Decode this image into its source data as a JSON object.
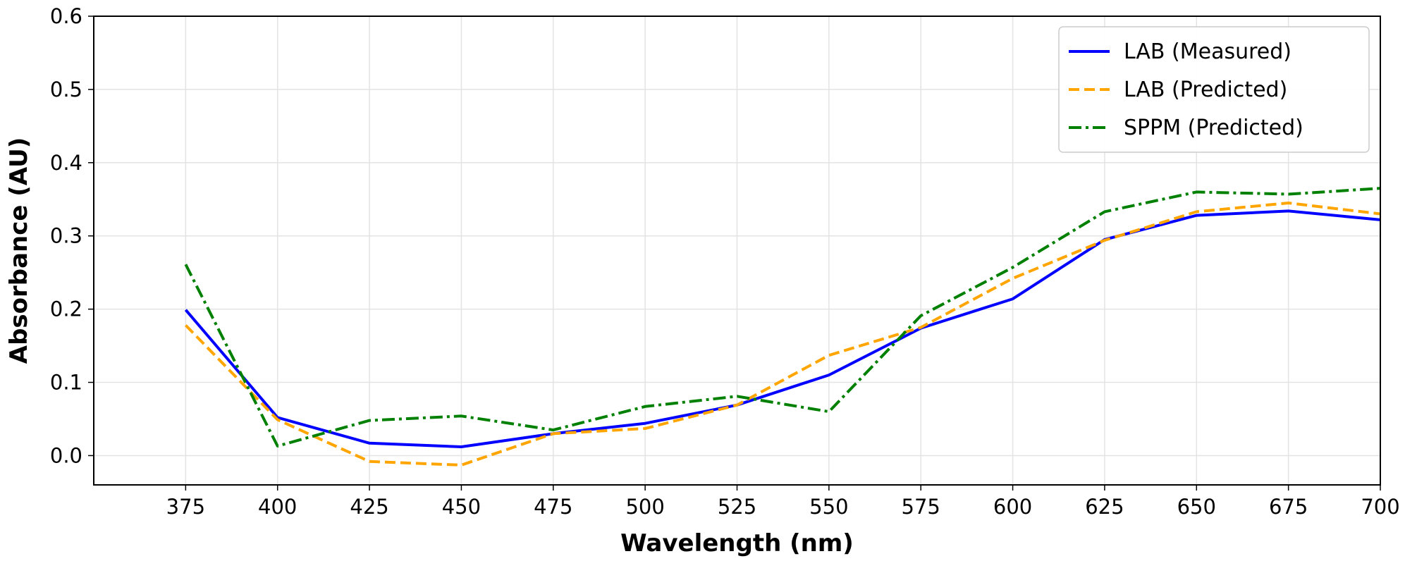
{
  "chart_data": {
    "type": "line",
    "title": "",
    "xlabel": "Wavelength (nm)",
    "ylabel": "Absorbance (AU)",
    "xlim": [
      350,
      700
    ],
    "ylim": [
      -0.04,
      0.6
    ],
    "x_ticks": [
      375,
      400,
      425,
      450,
      475,
      500,
      525,
      550,
      575,
      600,
      625,
      650,
      675,
      700
    ],
    "y_ticks": [
      0.0,
      0.1,
      0.2,
      0.3,
      0.4,
      0.5,
      0.6
    ],
    "x_tick_labels": [
      "375",
      "400",
      "425",
      "450",
      "475",
      "500",
      "525",
      "550",
      "575",
      "600",
      "625",
      "650",
      "675",
      "700"
    ],
    "y_tick_labels": [
      "0.0",
      "0.1",
      "0.2",
      "0.3",
      "0.4",
      "0.5",
      "0.6"
    ],
    "grid": true,
    "legend_position": "top-right",
    "x": [
      375,
      400,
      425,
      450,
      475,
      500,
      525,
      550,
      575,
      600,
      625,
      650,
      675,
      700
    ],
    "series": [
      {
        "name": "LAB (Measured)",
        "color": "#0000ff",
        "style": "solid",
        "values": [
          0.199,
          0.052,
          0.017,
          0.012,
          0.03,
          0.044,
          0.069,
          0.11,
          0.174,
          0.214,
          0.295,
          0.328,
          0.334,
          0.322
        ]
      },
      {
        "name": "LAB (Predicted)",
        "color": "#ffa500",
        "style": "dashed",
        "values": [
          0.178,
          0.049,
          -0.008,
          -0.013,
          0.03,
          0.037,
          0.069,
          0.137,
          0.175,
          0.242,
          0.294,
          0.333,
          0.345,
          0.33
        ]
      },
      {
        "name": "SPPM (Predicted)",
        "color": "#008000",
        "style": "dashdot",
        "values": [
          0.261,
          0.013,
          0.048,
          0.054,
          0.035,
          0.067,
          0.081,
          0.06,
          0.191,
          0.257,
          0.333,
          0.36,
          0.357,
          0.365
        ]
      }
    ]
  }
}
